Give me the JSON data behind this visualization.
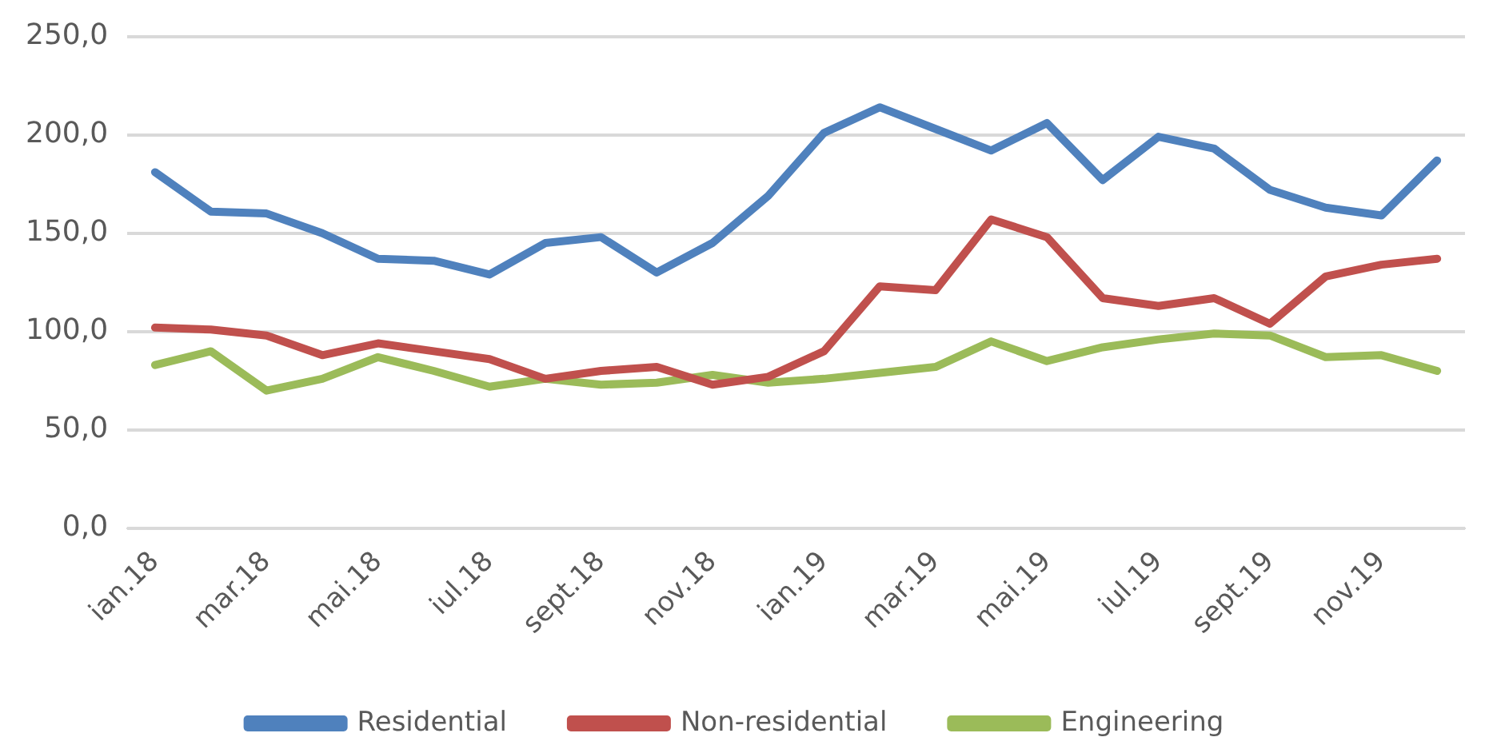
{
  "chart_data": {
    "type": "line",
    "categories": [
      "ian.18",
      null,
      "mar.18",
      null,
      "mai.18",
      null,
      "iul.18",
      null,
      "sept.18",
      null,
      "nov.18",
      null,
      "ian.19",
      null,
      "mar.19",
      null,
      "mai.19",
      null,
      "iul.19",
      null,
      "sept.19",
      null,
      "nov.19",
      null
    ],
    "series": [
      {
        "name": "Residential",
        "color": "#4f81bd",
        "values": [
          181,
          161,
          160,
          150,
          137,
          136,
          129,
          145,
          148,
          130,
          145,
          169,
          201,
          214,
          203,
          192,
          206,
          177,
          199,
          193,
          172,
          163,
          159,
          187
        ]
      },
      {
        "name": "Non-residential",
        "color": "#c0504d",
        "values": [
          102,
          101,
          98,
          88,
          94,
          90,
          86,
          76,
          80,
          82,
          73,
          77,
          90,
          123,
          121,
          157,
          148,
          117,
          113,
          117,
          104,
          128,
          134,
          137
        ]
      },
      {
        "name": "Engineering",
        "color": "#9bbb59",
        "values": [
          83,
          90,
          70,
          76,
          87,
          80,
          72,
          76,
          73,
          74,
          78,
          74,
          76,
          79,
          82,
          95,
          85,
          92,
          96,
          99,
          98,
          87,
          88,
          80
        ]
      }
    ],
    "ylim": [
      0,
      250
    ],
    "yticks": [
      {
        "value": 0,
        "label": "0,0"
      },
      {
        "value": 50,
        "label": "50,0"
      },
      {
        "value": 100,
        "label": "100,0"
      },
      {
        "value": 150,
        "label": "150,0"
      },
      {
        "value": 200,
        "label": "200,0"
      },
      {
        "value": 250,
        "label": "250,0"
      }
    ],
    "grid": "y",
    "legend": "bottom",
    "marker": "none",
    "line_style": "solid"
  }
}
